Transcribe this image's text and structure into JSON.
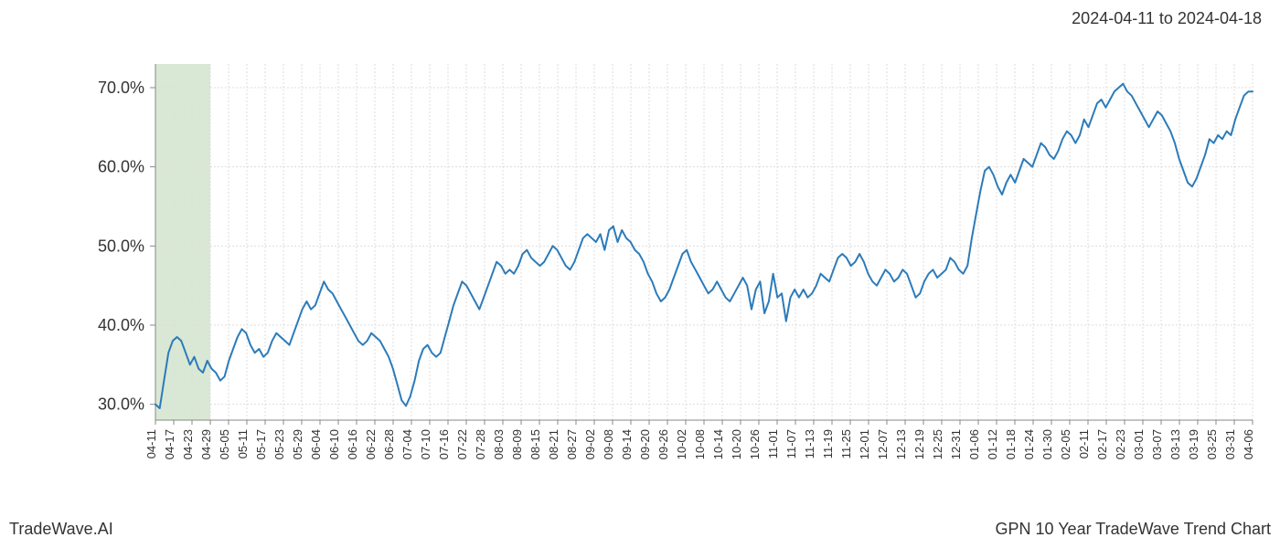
{
  "header": {
    "date_range": "2024-04-11 to 2024-04-18"
  },
  "footer": {
    "left": "TradeWave.AI",
    "right": "GPN 10 Year TradeWave Trend Chart"
  },
  "chart": {
    "type": "line",
    "background_color": "#ffffff",
    "line_color": "#2b7bba",
    "line_width": 2,
    "grid_color": "#dddddd",
    "grid_dash": "2,2",
    "axis_color": "#888888",
    "highlight_band": {
      "color": "#d9e8d4",
      "x_start_index": 0,
      "x_end_index": 3
    },
    "ylim": [
      28,
      73
    ],
    "yticks": [
      30,
      40,
      50,
      60,
      70
    ],
    "ytick_labels": [
      "30.0%",
      "40.0%",
      "50.0%",
      "60.0%",
      "70.0%"
    ],
    "label_fontsize": 18,
    "xlabel_fontsize": 13,
    "text_color": "#333333",
    "x_labels": [
      "04-11",
      "04-17",
      "04-23",
      "04-29",
      "05-05",
      "05-11",
      "05-17",
      "05-23",
      "05-29",
      "06-04",
      "06-10",
      "06-16",
      "06-22",
      "06-28",
      "07-04",
      "07-10",
      "07-16",
      "07-22",
      "07-28",
      "08-03",
      "08-09",
      "08-15",
      "08-21",
      "08-27",
      "09-02",
      "09-08",
      "09-14",
      "09-20",
      "09-26",
      "10-02",
      "10-08",
      "10-14",
      "10-20",
      "10-26",
      "11-01",
      "11-07",
      "11-13",
      "11-19",
      "11-25",
      "12-01",
      "12-07",
      "12-13",
      "12-19",
      "12-25",
      "12-31",
      "01-06",
      "01-12",
      "01-18",
      "01-24",
      "01-30",
      "02-05",
      "02-11",
      "02-17",
      "02-23",
      "03-01",
      "03-07",
      "03-13",
      "03-19",
      "03-25",
      "03-31",
      "04-06"
    ],
    "y_values": [
      30.0,
      29.5,
      33.0,
      36.5,
      38.0,
      38.5,
      38.0,
      36.5,
      35.0,
      36.0,
      34.5,
      34.0,
      35.5,
      34.5,
      34.0,
      33.0,
      33.5,
      35.5,
      37.0,
      38.5,
      39.5,
      39.0,
      37.5,
      36.5,
      37.0,
      36.0,
      36.5,
      38.0,
      39.0,
      38.5,
      38.0,
      37.5,
      39.0,
      40.5,
      42.0,
      43.0,
      42.0,
      42.5,
      44.0,
      45.5,
      44.5,
      44.0,
      43.0,
      42.0,
      41.0,
      40.0,
      39.0,
      38.0,
      37.5,
      38.0,
      39.0,
      38.5,
      38.0,
      37.0,
      36.0,
      34.5,
      32.5,
      30.5,
      29.8,
      31.0,
      33.0,
      35.5,
      37.0,
      37.5,
      36.5,
      36.0,
      36.5,
      38.5,
      40.5,
      42.5,
      44.0,
      45.5,
      45.0,
      44.0,
      43.0,
      42.0,
      43.5,
      45.0,
      46.5,
      48.0,
      47.5,
      46.5,
      47.0,
      46.5,
      47.5,
      49.0,
      49.5,
      48.5,
      48.0,
      47.5,
      48.0,
      49.0,
      50.0,
      49.5,
      48.5,
      47.5,
      47.0,
      48.0,
      49.5,
      51.0,
      51.5,
      51.0,
      50.5,
      51.5,
      49.5,
      52.0,
      52.5,
      50.5,
      52.0,
      51.0,
      50.5,
      49.5,
      49.0,
      48.0,
      46.5,
      45.5,
      44.0,
      43.0,
      43.5,
      44.5,
      46.0,
      47.5,
      49.0,
      49.5,
      48.0,
      47.0,
      46.0,
      45.0,
      44.0,
      44.5,
      45.5,
      44.5,
      43.5,
      43.0,
      44.0,
      45.0,
      46.0,
      45.0,
      42.0,
      44.5,
      45.5,
      41.5,
      43.0,
      46.5,
      43.5,
      44.0,
      40.5,
      43.5,
      44.5,
      43.5,
      44.5,
      43.5,
      44.0,
      45.0,
      46.5,
      46.0,
      45.5,
      47.0,
      48.5,
      49.0,
      48.5,
      47.5,
      48.0,
      49.0,
      48.0,
      46.5,
      45.5,
      45.0,
      46.0,
      47.0,
      46.5,
      45.5,
      46.0,
      47.0,
      46.5,
      45.0,
      43.5,
      44.0,
      45.5,
      46.5,
      47.0,
      46.0,
      46.5,
      47.0,
      48.5,
      48.0,
      47.0,
      46.5,
      47.5,
      51.0,
      54.0,
      57.0,
      59.5,
      60.0,
      59.0,
      57.5,
      56.5,
      58.0,
      59.0,
      58.0,
      59.5,
      61.0,
      60.5,
      60.0,
      61.5,
      63.0,
      62.5,
      61.5,
      61.0,
      62.0,
      63.5,
      64.5,
      64.0,
      63.0,
      64.0,
      66.0,
      65.0,
      66.5,
      68.0,
      68.5,
      67.5,
      68.5,
      69.5,
      70.0,
      70.5,
      69.5,
      69.0,
      68.0,
      67.0,
      66.0,
      65.0,
      66.0,
      67.0,
      66.5,
      65.5,
      64.5,
      63.0,
      61.0,
      59.5,
      58.0,
      57.5,
      58.5,
      60.0,
      61.5,
      63.5,
      63.0,
      64.0,
      63.5,
      64.5,
      64.0,
      66.0,
      67.5,
      69.0,
      69.5,
      69.5
    ]
  }
}
